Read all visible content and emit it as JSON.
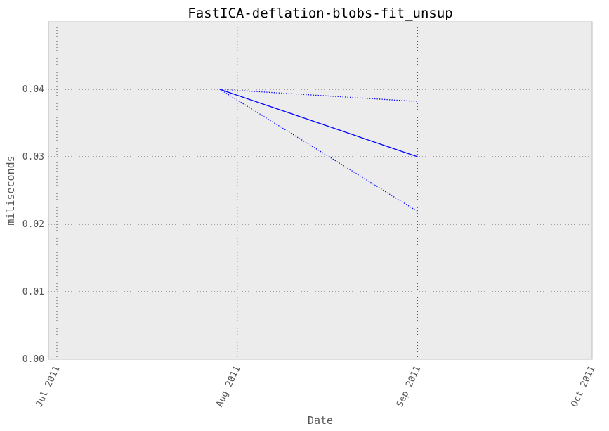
{
  "chart_data": {
    "type": "line",
    "title": "FastICA-deflation-blobs-fit_unsup",
    "xlabel": "Date",
    "ylabel": "miliseconds",
    "xlim": [
      "2011-07-01",
      "2011-10-01"
    ],
    "ylim": [
      0,
      0.05
    ],
    "x_ticks": [
      {
        "date": "2011-07-01",
        "label": "Jul 2011"
      },
      {
        "date": "2011-08-01",
        "label": "Aug 2011"
      },
      {
        "date": "2011-09-01",
        "label": "Sep 2011"
      },
      {
        "date": "2011-10-01",
        "label": "Oct 2011"
      }
    ],
    "y_ticks": [
      {
        "value": 0.0,
        "label": "0.00"
      },
      {
        "value": 0.01,
        "label": "0.01"
      },
      {
        "value": 0.02,
        "label": "0.02"
      },
      {
        "value": 0.03,
        "label": "0.03"
      },
      {
        "value": 0.04,
        "label": "0.04"
      }
    ],
    "grid": true,
    "background_color": "#ececec",
    "series": [
      {
        "role": "mean",
        "style": "solid",
        "color": "#0000ff",
        "x": [
          "2011-07-29",
          "2011-09-01"
        ],
        "y": [
          0.04,
          0.03
        ]
      },
      {
        "role": "upper",
        "style": "dotted",
        "color": "#0000ff",
        "x": [
          "2011-07-29",
          "2011-09-01"
        ],
        "y": [
          0.04,
          0.0382
        ]
      },
      {
        "role": "lower",
        "style": "dotted",
        "color": "#0000ff",
        "x": [
          "2011-07-29",
          "2011-09-01"
        ],
        "y": [
          0.04,
          0.0219
        ]
      }
    ]
  }
}
